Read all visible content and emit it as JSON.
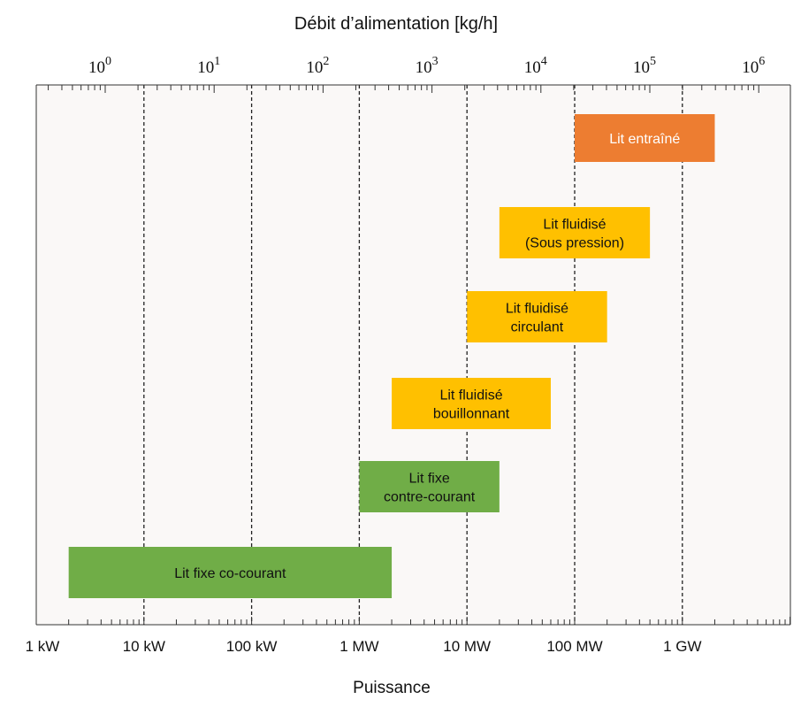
{
  "chart_data": {
    "type": "bar",
    "orientation": "horizontal-range",
    "title": "Débit d’alimentation [kg/h]",
    "xlabel": "Puissance",
    "x_scale": "log",
    "top_axis": {
      "ticks": [
        {
          "base": "10",
          "exp": "0",
          "value_kgh": 1
        },
        {
          "base": "10",
          "exp": "1",
          "value_kgh": 10
        },
        {
          "base": "10",
          "exp": "2",
          "value_kgh": 100
        },
        {
          "base": "10",
          "exp": "3",
          "value_kgh": 1000
        },
        {
          "base": "10",
          "exp": "4",
          "value_kgh": 10000
        },
        {
          "base": "10",
          "exp": "5",
          "value_kgh": 100000
        },
        {
          "base": "10",
          "exp": "6",
          "value_kgh": 1000000
        }
      ]
    },
    "bottom_axis": {
      "ticks": [
        {
          "label": "1 kW",
          "value_kw": 1
        },
        {
          "label": "10 kW",
          "value_kw": 10
        },
        {
          "label": "100 kW",
          "value_kw": 100
        },
        {
          "label": "1 MW",
          "value_kw": 1000
        },
        {
          "label": "10 MW",
          "value_kw": 10000
        },
        {
          "label": "100 MW",
          "value_kw": 100000
        },
        {
          "label": "1 GW",
          "value_kw": 1000000
        }
      ],
      "xlim_kw": [
        1,
        20000000
      ]
    },
    "gridlines_kw": [
      10,
      100,
      1000,
      10000,
      100000,
      1000000
    ],
    "bars": [
      {
        "label": "Lit entraîné",
        "kw_start": 100000,
        "kw_end": 2000000,
        "color": "#ED7D31",
        "text_color": "#ffffff"
      },
      {
        "label": "Lit fluidisé\n(Sous pression)",
        "kw_start": 20000,
        "kw_end": 500000,
        "color": "#FFC000",
        "text_color": "#111111"
      },
      {
        "label": "Lit fluidisé\ncirculant",
        "kw_start": 10000,
        "kw_end": 200000,
        "color": "#FFC000",
        "text_color": "#111111"
      },
      {
        "label": "Lit fluidisé\nbouillonnant",
        "kw_start": 2000,
        "kw_end": 60000,
        "color": "#FFC000",
        "text_color": "#111111"
      },
      {
        "label": "Lit fixe\ncontre-courant",
        "kw_start": 1000,
        "kw_end": 20000,
        "color": "#70AD47",
        "text_color": "#111111"
      },
      {
        "label": "Lit fixe co-courant",
        "kw_start": 2,
        "kw_end": 2000,
        "color": "#70AD47",
        "text_color": "#111111"
      }
    ],
    "colors": {
      "background": "#FAF8F7",
      "orange": "#ED7D31",
      "yellow": "#FFC000",
      "green": "#70AD47"
    }
  }
}
